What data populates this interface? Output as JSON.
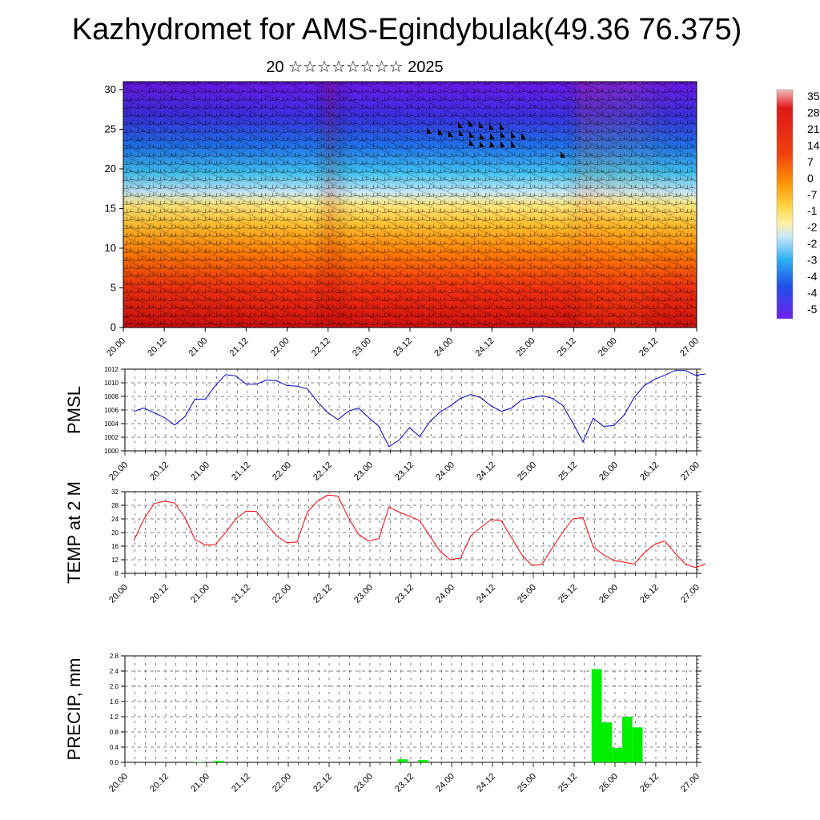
{
  "title": "Kazhydromet for AMS-Egindybulak(49.36 76.375)",
  "subtitle": "20 ☆☆☆☆☆☆☆☆ 2025",
  "chart_data": [
    {
      "type": "heatmap",
      "ylim": [
        0,
        31
      ],
      "yticks": [
        "0",
        "5",
        "10",
        "15",
        "20",
        "25",
        "30"
      ],
      "xticks": [
        "20.00",
        "20.12",
        "21.00",
        "21.12",
        "22.00",
        "22.12",
        "23.00",
        "23.12",
        "24.00",
        "24.12",
        "25.00",
        "25.12",
        "26.00",
        "26.12",
        "27.00"
      ],
      "colorbar_labels": [
        "35",
        "28",
        "21",
        "14",
        "7",
        "0",
        "-7",
        "-1",
        "-2",
        "-2",
        "-3",
        "-4",
        "-4",
        "-5"
      ]
    },
    {
      "type": "line",
      "ylabel": "PMSL",
      "ylim": [
        1000,
        1012
      ],
      "yticks": [
        "1000",
        "1002",
        "1004",
        "1006",
        "1008",
        "1010",
        "1012"
      ],
      "xticks": [
        "20.00",
        "20.12",
        "21.00",
        "21.12",
        "22.00",
        "22.12",
        "23.00",
        "23.12",
        "24.00",
        "24.12",
        "25.00",
        "25.12",
        "26.00",
        "26.12",
        "27.00"
      ],
      "color": "#0000cc",
      "series": [
        {
          "values": [
            1005.8,
            1006.3,
            1005.6,
            1004.9,
            1003.8,
            1005.0,
            1007.6,
            1007.6,
            1009.6,
            1011.2,
            1011.0,
            1009.8,
            1009.8,
            1010.4,
            1010.3,
            1009.6,
            1009.5,
            1009.1,
            1007.2,
            1005.6,
            1004.6,
            1005.8,
            1006.3,
            1004.9,
            1003.6,
            1000.6,
            1001.6,
            1003.4,
            1002.1,
            1004.3,
            1005.7,
            1006.6,
            1007.7,
            1008.3,
            1007.8,
            1006.6,
            1005.8,
            1006.3,
            1007.5,
            1007.8,
            1008.1,
            1007.7,
            1006.7,
            1004.1,
            1001.3,
            1004.8,
            1003.6,
            1003.7,
            1005.2,
            1007.8,
            1009.6,
            1010.5,
            1011.1,
            1011.8,
            1011.8,
            1011.1,
            1011.3
          ]
        }
      ]
    },
    {
      "type": "line",
      "ylabel": "TEMP at 2 M",
      "ylim": [
        8,
        32
      ],
      "yticks": [
        "8",
        "12",
        "16",
        "20",
        "24",
        "28",
        "32"
      ],
      "xticks": [
        "20.00",
        "20.12",
        "21.00",
        "21.12",
        "22.00",
        "22.12",
        "23.00",
        "23.12",
        "24.00",
        "24.12",
        "25.00",
        "25.12",
        "26.00",
        "26.12",
        "27.00"
      ],
      "color": "#ff0000",
      "series": [
        {
          "values": [
            17.5,
            24.0,
            28.5,
            29.2,
            28.7,
            24.5,
            18.0,
            16.3,
            16.5,
            20.0,
            24.0,
            26.3,
            26.2,
            22.5,
            19.0,
            17.0,
            17.2,
            26.0,
            29.2,
            31.0,
            30.7,
            24.5,
            19.5,
            17.5,
            18.2,
            27.5,
            26.0,
            24.8,
            23.5,
            19.0,
            14.5,
            12.0,
            12.5,
            19.0,
            21.5,
            23.8,
            23.5,
            18.5,
            13.5,
            10.3,
            10.7,
            15.5,
            20.0,
            24.0,
            24.4,
            15.8,
            13.5,
            11.8,
            11.3,
            10.7,
            14.0,
            16.5,
            17.5,
            14.0,
            10.8,
            9.7,
            10.8
          ]
        }
      ]
    },
    {
      "type": "bar",
      "ylabel": "PRECIP, mm",
      "ylim": [
        0,
        2.8
      ],
      "yticks": [
        "0.0",
        "0.4",
        "0.8",
        "1.2",
        "1.6",
        "2.0",
        "2.4",
        "2.8"
      ],
      "xticks": [
        "20.00",
        "20.12",
        "21.00",
        "21.12",
        "22.00",
        "22.12",
        "23.00",
        "23.12",
        "24.00",
        "24.12",
        "25.00",
        "25.12",
        "26.00",
        "26.12",
        "27.00"
      ],
      "color": "#00ee00",
      "bars": [
        {
          "start": 6,
          "value": 0.01
        },
        {
          "start": 8,
          "value": 0.04
        },
        {
          "start": 26,
          "value": 0.08
        },
        {
          "start": 28,
          "value": 0.06
        },
        {
          "start": 45,
          "value": 2.45
        },
        {
          "start": 46,
          "value": 1.05
        },
        {
          "start": 47,
          "value": 0.38
        },
        {
          "start": 48,
          "value": 1.2
        },
        {
          "start": 49,
          "value": 0.92
        }
      ]
    }
  ]
}
